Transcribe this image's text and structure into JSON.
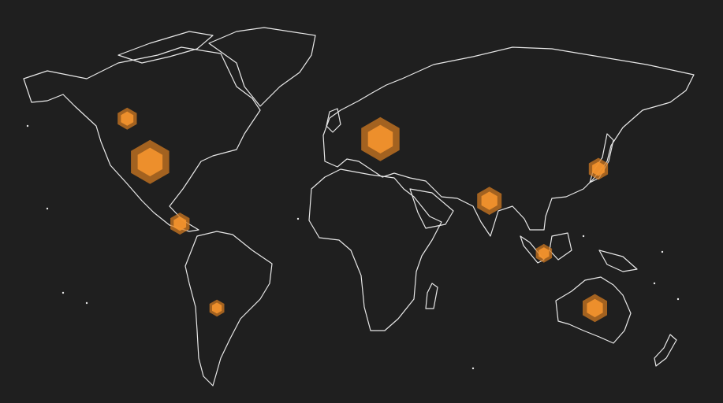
{
  "map": {
    "hexbins": [
      {
        "lon": -129,
        "lat": 57,
        "count": 25
      },
      {
        "lon": -116,
        "lat": 38,
        "count": 100
      },
      {
        "lon": -99,
        "lat": 11,
        "count": 25
      },
      {
        "lon": -78,
        "lat": -26,
        "count": 15
      },
      {
        "lon": 15,
        "lat": 48,
        "count": 100
      },
      {
        "lon": 77,
        "lat": 21,
        "count": 41
      },
      {
        "lon": 139,
        "lat": 35,
        "count": 25
      },
      {
        "lon": 108,
        "lat": -2,
        "count": 18
      },
      {
        "lon": 137,
        "lat": -26,
        "count": 41
      }
    ]
  }
}
